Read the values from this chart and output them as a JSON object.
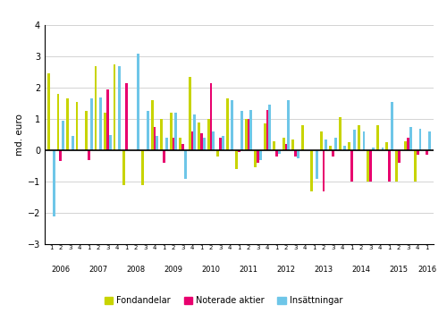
{
  "title": "",
  "ylabel": "md. euro",
  "ylim": [
    -3,
    4
  ],
  "yticks": [
    -3,
    -2,
    -1,
    0,
    1,
    2,
    3,
    4
  ],
  "colors": {
    "fondandelar": "#c8d400",
    "noterade": "#e8006e",
    "insattningar": "#6ec6e8"
  },
  "legend": [
    "Fondandelar",
    "Noterade aktier",
    "Insättningar"
  ],
  "quarters": [
    "1",
    "2",
    "3",
    "4",
    "1",
    "2",
    "3",
    "4",
    "1",
    "2",
    "3",
    "4",
    "1",
    "2",
    "3",
    "4",
    "1",
    "2",
    "3",
    "4",
    "1",
    "2",
    "3",
    "4",
    "1",
    "2",
    "3",
    "4",
    "1",
    "2",
    "3",
    "4",
    "1",
    "2",
    "3",
    "4",
    "1",
    "2",
    "3",
    "4",
    "1"
  ],
  "years": [
    "2006",
    "2007",
    "2008",
    "2009",
    "2010",
    "2011",
    "2012",
    "2013",
    "2014",
    "2015",
    "2016"
  ],
  "year_positions": [
    2,
    6,
    10,
    14,
    18,
    22,
    26,
    30,
    34,
    38,
    41
  ],
  "fondandelar": [
    2.45,
    1.8,
    1.65,
    1.55,
    1.25,
    2.7,
    1.2,
    2.75,
    -1.1,
    0.0,
    -1.1,
    1.6,
    1.0,
    1.2,
    0.4,
    2.35,
    0.9,
    1.0,
    -0.2,
    1.65,
    -0.6,
    1.0,
    -0.55,
    0.85,
    0.3,
    0.4,
    0.35,
    0.8,
    -1.3,
    0.6,
    0.15,
    1.05,
    0.25,
    0.8,
    -1.0,
    0.8,
    0.25,
    -1.0,
    0.3,
    -1.0,
    0.0
  ],
  "noterade": [
    0.0,
    -0.35,
    0.0,
    0.0,
    -0.3,
    0.0,
    1.95,
    0.0,
    2.15,
    0.0,
    0.0,
    0.75,
    -0.4,
    0.4,
    0.2,
    0.6,
    0.55,
    2.15,
    0.4,
    0.0,
    -0.05,
    1.0,
    -0.4,
    1.3,
    -0.2,
    0.2,
    -0.2,
    0.0,
    0.0,
    -1.3,
    -0.2,
    0.0,
    -1.0,
    0.0,
    -1.0,
    0.0,
    -1.0,
    -0.4,
    0.4,
    -0.15,
    -0.15
  ],
  "insattningar": [
    -2.1,
    0.95,
    0.45,
    0.0,
    1.65,
    1.7,
    0.5,
    2.7,
    0.0,
    3.1,
    1.25,
    0.45,
    0.4,
    1.2,
    -0.9,
    1.15,
    0.4,
    0.6,
    0.45,
    1.6,
    1.25,
    1.3,
    -0.3,
    1.45,
    -0.1,
    1.6,
    -0.25,
    0.0,
    -0.9,
    0.35,
    0.4,
    0.15,
    0.65,
    0.6,
    0.1,
    0.1,
    1.55,
    0.0,
    0.75,
    0.7,
    0.6
  ],
  "figsize": [
    5.0,
    3.5
  ],
  "dpi": 100
}
